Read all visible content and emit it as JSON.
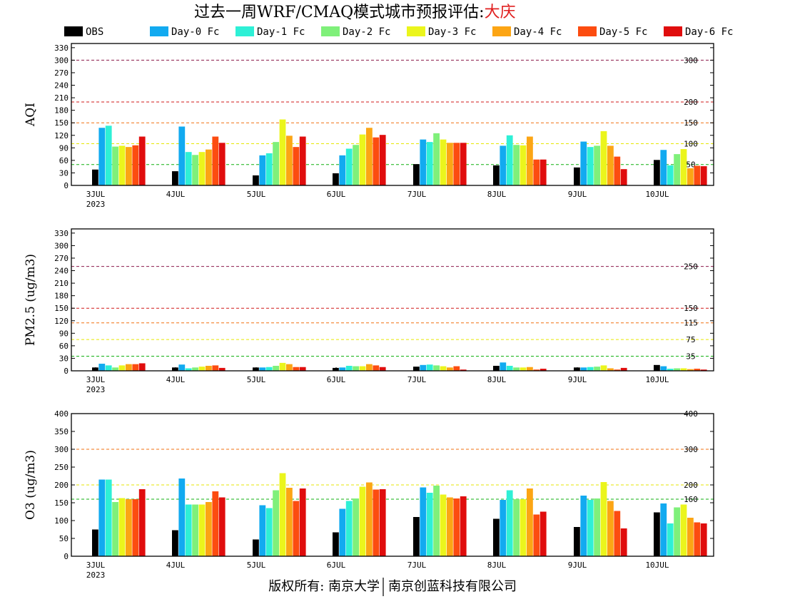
{
  "title": {
    "prefix": "过去一周WRF/CMAQ模式城市预报评估:",
    "city": "大庆",
    "city_color": "#e02020"
  },
  "footer": {
    "left": "版权所有: 南京大学",
    "right": "南京创蓝科技有限公司"
  },
  "legend": [
    {
      "label": "OBS",
      "color": "#000000"
    },
    {
      "label": "Day-0 Fc",
      "color": "#12aaf0"
    },
    {
      "label": "Day-1 Fc",
      "color": "#2ef0d6"
    },
    {
      "label": "Day-2 Fc",
      "color": "#7ff07a"
    },
    {
      "label": "Day-3 Fc",
      "color": "#ebf51c"
    },
    {
      "label": "Day-4 Fc",
      "color": "#fca514"
    },
    {
      "label": "Day-5 Fc",
      "color": "#fc4c10"
    },
    {
      "label": "Day-6 Fc",
      "color": "#e00d0d"
    }
  ],
  "x_labels": [
    "3JUL",
    "4JUL",
    "5JUL",
    "6JUL",
    "7JUL",
    "8JUL",
    "9JUL",
    "10JUL"
  ],
  "x_sublabel": "2023",
  "chart_data": [
    {
      "type": "bar",
      "ylabel": "AQI",
      "ylim": [
        0,
        340
      ],
      "yticks": [
        0,
        30,
        60,
        90,
        120,
        150,
        180,
        210,
        240,
        270,
        300,
        330
      ],
      "reference_lines": [
        {
          "value": 300,
          "label": "300",
          "color": "#8b1a4a"
        },
        {
          "value": 200,
          "label": "200",
          "color": "#d01818"
        },
        {
          "value": 150,
          "label": "150",
          "color": "#f07010"
        },
        {
          "value": 100,
          "label": "100",
          "color": "#e6e600"
        },
        {
          "value": 50,
          "label": "50",
          "color": "#10b010"
        }
      ],
      "categories": [
        "3JUL",
        "4JUL",
        "5JUL",
        "6JUL",
        "7JUL",
        "8JUL",
        "9JUL",
        "10JUL"
      ],
      "series": [
        {
          "name": "OBS",
          "values": [
            38,
            34,
            24,
            29,
            51,
            48,
            43,
            61
          ]
        },
        {
          "name": "Day-0 Fc",
          "values": [
            138,
            141,
            72,
            72,
            110,
            95,
            105,
            85
          ]
        },
        {
          "name": "Day-1 Fc",
          "values": [
            143,
            80,
            77,
            88,
            104,
            120,
            92,
            48
          ]
        },
        {
          "name": "Day-2 Fc",
          "values": [
            93,
            73,
            104,
            97,
            125,
            97,
            95,
            75
          ]
        },
        {
          "name": "Day-3 Fc",
          "values": [
            95,
            80,
            158,
            122,
            110,
            96,
            130,
            87
          ]
        },
        {
          "name": "Day-4 Fc",
          "values": [
            92,
            86,
            119,
            138,
            102,
            117,
            95,
            41
          ]
        },
        {
          "name": "Day-5 Fc",
          "values": [
            96,
            117,
            92,
            115,
            102,
            62,
            69,
            47
          ]
        },
        {
          "name": "Day-6 Fc",
          "values": [
            117,
            102,
            117,
            121,
            102,
            62,
            39,
            46
          ]
        }
      ]
    },
    {
      "type": "bar",
      "ylabel": "PM2.5 (ug/m3)",
      "ylim": [
        0,
        340
      ],
      "yticks": [
        0,
        30,
        60,
        90,
        120,
        150,
        180,
        210,
        240,
        270,
        300,
        330
      ],
      "reference_lines": [
        {
          "value": 250,
          "label": "250",
          "color": "#8b1a4a"
        },
        {
          "value": 150,
          "label": "150",
          "color": "#d01818"
        },
        {
          "value": 115,
          "label": "115",
          "color": "#f07010"
        },
        {
          "value": 75,
          "label": "75",
          "color": "#e6e600"
        },
        {
          "value": 35,
          "label": "35",
          "color": "#10b010"
        }
      ],
      "categories": [
        "3JUL",
        "4JUL",
        "5JUL",
        "6JUL",
        "7JUL",
        "8JUL",
        "9JUL",
        "10JUL"
      ],
      "series": [
        {
          "name": "OBS",
          "values": [
            8,
            8,
            8,
            7,
            10,
            12,
            8,
            14
          ]
        },
        {
          "name": "Day-0 Fc",
          "values": [
            17,
            15,
            8,
            8,
            14,
            20,
            8,
            11
          ]
        },
        {
          "name": "Day-1 Fc",
          "values": [
            13,
            6,
            9,
            12,
            15,
            12,
            9,
            5
          ]
        },
        {
          "name": "Day-2 Fc",
          "values": [
            8,
            8,
            12,
            11,
            13,
            8,
            10,
            6
          ]
        },
        {
          "name": "Day-3 Fc",
          "values": [
            13,
            10,
            19,
            11,
            11,
            8,
            13,
            6
          ]
        },
        {
          "name": "Day-4 Fc",
          "values": [
            16,
            12,
            16,
            16,
            8,
            9,
            6,
            4
          ]
        },
        {
          "name": "Day-5 Fc",
          "values": [
            16,
            13,
            9,
            13,
            11,
            3,
            3,
            5
          ]
        },
        {
          "name": "Day-6 Fc",
          "values": [
            18,
            7,
            9,
            9,
            3,
            5,
            7,
            3
          ]
        }
      ]
    },
    {
      "type": "bar",
      "ylabel": "O3 (ug/m3)",
      "ylim": [
        0,
        400
      ],
      "yticks": [
        0,
        50,
        100,
        150,
        200,
        250,
        300,
        350,
        400
      ],
      "reference_lines": [
        {
          "value": 400,
          "label": "400",
          "color": "#8b1a4a"
        },
        {
          "value": 300,
          "label": "300",
          "color": "#f07010"
        },
        {
          "value": 200,
          "label": "200",
          "color": "#e6e600"
        },
        {
          "value": 160,
          "label": "160",
          "color": "#10b010"
        }
      ],
      "categories": [
        "3JUL",
        "4JUL",
        "5JUL",
        "6JUL",
        "7JUL",
        "8JUL",
        "9JUL",
        "10JUL"
      ],
      "series": [
        {
          "name": "OBS",
          "values": [
            75,
            73,
            47,
            67,
            110,
            105,
            82,
            123
          ]
        },
        {
          "name": "Day-0 Fc",
          "values": [
            215,
            218,
            143,
            133,
            193,
            158,
            170,
            148
          ]
        },
        {
          "name": "Day-1 Fc",
          "values": [
            215,
            145,
            135,
            155,
            178,
            185,
            158,
            92
          ]
        },
        {
          "name": "Day-2 Fc",
          "values": [
            152,
            145,
            185,
            162,
            198,
            160,
            162,
            137
          ]
        },
        {
          "name": "Day-3 Fc",
          "values": [
            163,
            145,
            233,
            195,
            173,
            160,
            208,
            145
          ]
        },
        {
          "name": "Day-4 Fc",
          "values": [
            160,
            152,
            192,
            207,
            165,
            190,
            155,
            108
          ]
        },
        {
          "name": "Day-5 Fc",
          "values": [
            160,
            182,
            155,
            187,
            162,
            117,
            127,
            95
          ]
        },
        {
          "name": "Day-6 Fc",
          "values": [
            188,
            165,
            190,
            188,
            168,
            125,
            78,
            92
          ]
        }
      ]
    }
  ]
}
